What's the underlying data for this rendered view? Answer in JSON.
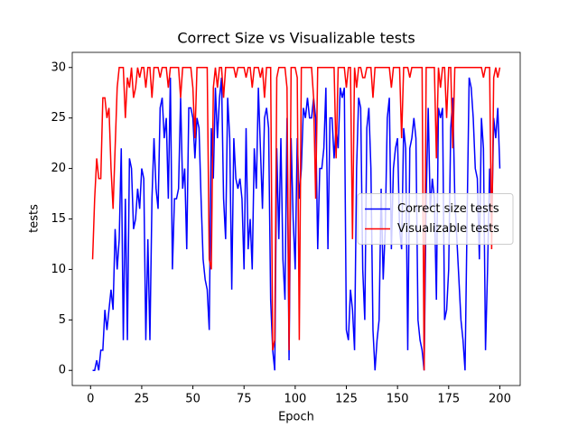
{
  "chart_data": {
    "type": "line",
    "title": "Correct Size vs Visualizable tests",
    "xlabel": "Epoch",
    "ylabel": "tests",
    "xlim": [
      -8.95,
      209.95
    ],
    "ylim": [
      -1.5,
      31.5
    ],
    "xticks": [
      0,
      25,
      50,
      75,
      100,
      125,
      150,
      175,
      200
    ],
    "yticks": [
      0,
      5,
      10,
      15,
      20,
      25,
      30
    ],
    "legend": "center right",
    "x": [
      1,
      2,
      3,
      4,
      5,
      6,
      7,
      8,
      9,
      10,
      11,
      12,
      13,
      14,
      15,
      16,
      17,
      18,
      19,
      20,
      21,
      22,
      23,
      24,
      25,
      26,
      27,
      28,
      29,
      30,
      31,
      32,
      33,
      34,
      35,
      36,
      37,
      38,
      39,
      40,
      41,
      42,
      43,
      44,
      45,
      46,
      47,
      48,
      49,
      50,
      51,
      52,
      53,
      54,
      55,
      56,
      57,
      58,
      59,
      60,
      61,
      62,
      63,
      64,
      65,
      66,
      67,
      68,
      69,
      70,
      71,
      72,
      73,
      74,
      75,
      76,
      77,
      78,
      79,
      80,
      81,
      82,
      83,
      84,
      85,
      86,
      87,
      88,
      89,
      90,
      91,
      92,
      93,
      94,
      95,
      96,
      97,
      98,
      99,
      100,
      101,
      102,
      103,
      104,
      105,
      106,
      107,
      108,
      109,
      110,
      111,
      112,
      113,
      114,
      115,
      116,
      117,
      118,
      119,
      120,
      121,
      122,
      123,
      124,
      125,
      126,
      127,
      128,
      129,
      130,
      131,
      132,
      133,
      134,
      135,
      136,
      137,
      138,
      139,
      140,
      141,
      142,
      143,
      144,
      145,
      146,
      147,
      148,
      149,
      150,
      151,
      152,
      153,
      154,
      155,
      156,
      157,
      158,
      159,
      160,
      161,
      162,
      163,
      164,
      165,
      166,
      167,
      168,
      169,
      170,
      171,
      172,
      173,
      174,
      175,
      176,
      177,
      178,
      179,
      180,
      181,
      182,
      183,
      184,
      185,
      186,
      187,
      188,
      189,
      190,
      191,
      192,
      193,
      194,
      195,
      196,
      197,
      198,
      199,
      200
    ],
    "series": [
      {
        "name": "Correct size tests",
        "color": "#0000ff",
        "values": [
          0,
          0,
          1,
          0,
          2,
          2,
          6,
          4,
          6,
          8,
          6,
          14,
          10,
          13,
          22,
          3,
          17,
          3,
          21,
          20,
          14,
          15,
          18,
          16,
          20,
          19,
          3,
          13,
          3,
          17,
          23,
          18,
          16,
          26,
          27,
          23,
          25,
          17,
          29,
          10,
          17,
          17,
          18,
          27,
          18,
          20,
          12,
          26,
          26,
          25,
          21,
          25,
          24,
          17,
          11,
          9,
          8,
          4,
          24,
          19,
          28,
          23,
          27,
          29,
          17,
          13,
          27,
          23,
          8,
          23,
          19,
          18,
          19,
          17,
          10,
          24,
          12,
          15,
          10,
          22,
          18,
          28,
          22,
          16,
          25,
          26,
          24,
          7,
          2,
          0,
          22,
          13,
          23,
          11,
          7,
          25,
          1,
          23,
          15,
          10,
          23,
          17,
          20,
          26,
          25,
          27,
          25,
          25,
          27,
          25,
          12,
          20,
          20,
          22,
          28,
          12,
          25,
          25,
          21,
          24,
          22,
          28,
          27,
          28,
          4,
          3,
          8,
          6,
          2,
          20,
          27,
          26,
          10,
          5,
          24,
          26,
          20,
          4,
          0,
          3,
          5,
          18,
          9,
          14,
          25,
          27,
          12,
          20,
          22,
          23,
          14,
          12,
          24,
          22,
          2,
          22,
          23,
          25,
          23,
          5,
          3,
          2,
          0,
          17,
          26,
          16,
          19,
          17,
          7,
          26,
          25,
          26,
          5,
          6,
          10,
          24,
          27,
          17,
          13,
          9,
          5,
          3,
          0,
          15,
          29,
          28,
          25,
          20,
          19,
          11,
          25,
          22,
          2,
          10,
          20,
          14,
          25,
          23,
          26,
          20
        ]
      },
      {
        "name": "Visualizable tests",
        "color": "#ff0000",
        "values": [
          11,
          17,
          21,
          19,
          19,
          27,
          27,
          25,
          26,
          20,
          16,
          22,
          28,
          30,
          30,
          30,
          25,
          29,
          28,
          30,
          27,
          28,
          30,
          29,
          30,
          30,
          28,
          30,
          30,
          27,
          30,
          30,
          30,
          29,
          30,
          30,
          30,
          28,
          30,
          30,
          30,
          30,
          30,
          27,
          30,
          30,
          30,
          30,
          30,
          28,
          23,
          30,
          30,
          30,
          30,
          30,
          30,
          11,
          10,
          28,
          30,
          28,
          30,
          30,
          27,
          30,
          30,
          30,
          30,
          30,
          29,
          30,
          30,
          30,
          30,
          29,
          30,
          30,
          28,
          30,
          30,
          30,
          29,
          30,
          27,
          30,
          30,
          30,
          2,
          3,
          29,
          30,
          30,
          30,
          30,
          28,
          2,
          30,
          30,
          30,
          29,
          3,
          30,
          30,
          30,
          30,
          30,
          30,
          27,
          17,
          30,
          30,
          30,
          30,
          30,
          30,
          30,
          30,
          30,
          21,
          30,
          30,
          30,
          30,
          28,
          30,
          30,
          13,
          30,
          28,
          30,
          30,
          29,
          29,
          30,
          30,
          30,
          27,
          30,
          30,
          30,
          30,
          30,
          30,
          30,
          30,
          28,
          30,
          30,
          30,
          30,
          23,
          30,
          30,
          30,
          29,
          30,
          30,
          30,
          30,
          30,
          30,
          0,
          30,
          30,
          30,
          30,
          30,
          21,
          30,
          28,
          30,
          30,
          25,
          30,
          30,
          22,
          30,
          30,
          30,
          30,
          30,
          30,
          30,
          30,
          30,
          30,
          30,
          30,
          30,
          30,
          29,
          30,
          30,
          30,
          12,
          29,
          30,
          29,
          30
        ]
      }
    ]
  }
}
